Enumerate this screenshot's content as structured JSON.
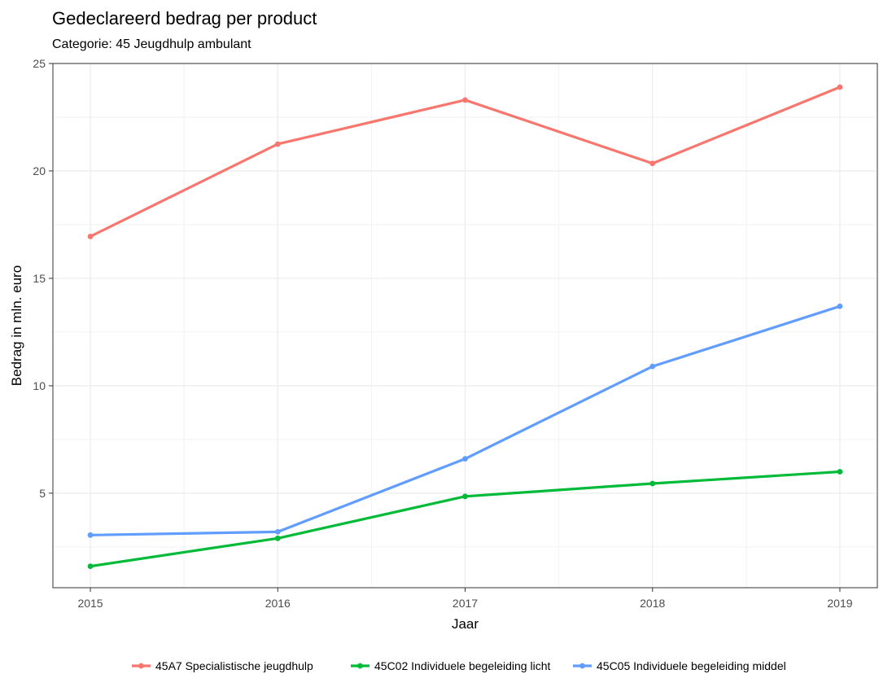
{
  "chart_data": {
    "type": "line",
    "title": "Gedeclareerd bedrag per product",
    "subtitle": "Categorie: 45 Jeugdhulp ambulant",
    "xlabel": "Jaar",
    "ylabel": "Bedrag in mln. euro",
    "x": [
      2015,
      2016,
      2017,
      2018,
      2019
    ],
    "x_tick_labels": [
      "2015",
      "2016",
      "2017",
      "2018",
      "2019"
    ],
    "y_ticks": [
      5,
      10,
      15,
      20,
      25
    ],
    "y_tick_labels": [
      "5",
      "10",
      "15",
      "20",
      "25"
    ],
    "xlim": [
      2014.8,
      2019.2
    ],
    "ylim": [
      0.6,
      25
    ],
    "grid": true,
    "legend_position": "bottom",
    "series": [
      {
        "name": "45A7 Specialistische jeugdhulp",
        "color": "#F8766D",
        "values": [
          16.95,
          21.25,
          23.3,
          20.35,
          23.9
        ]
      },
      {
        "name": "45C02 Individuele begeleiding licht",
        "color": "#00BA38",
        "values": [
          1.6,
          2.9,
          4.85,
          5.45,
          6.0
        ]
      },
      {
        "name": "45C05 Individuele begeleiding middel",
        "color": "#619CFF",
        "values": [
          3.05,
          3.2,
          6.6,
          10.9,
          13.7
        ]
      }
    ]
  }
}
